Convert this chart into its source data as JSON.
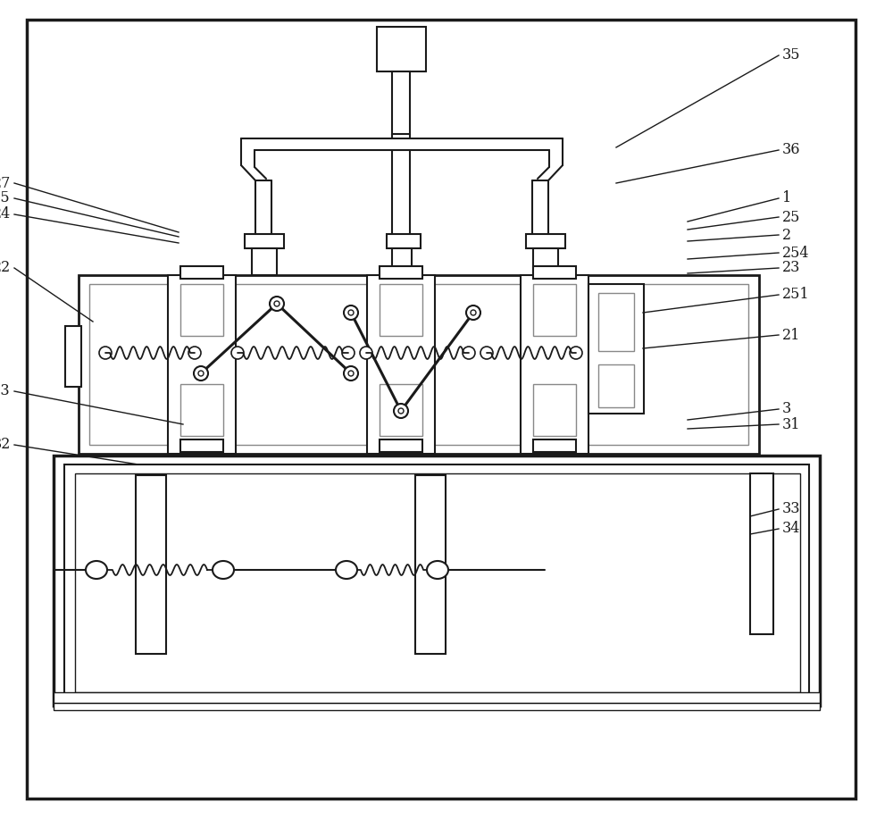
{
  "bg": "#ffffff",
  "lc": "#1a1a1a",
  "lc_gray": "#888888",
  "lw": 1.5,
  "lwt": 2.2,
  "lwb": 2.5,
  "fig_w": 10.0,
  "fig_h": 9.18,
  "dpi": 100
}
